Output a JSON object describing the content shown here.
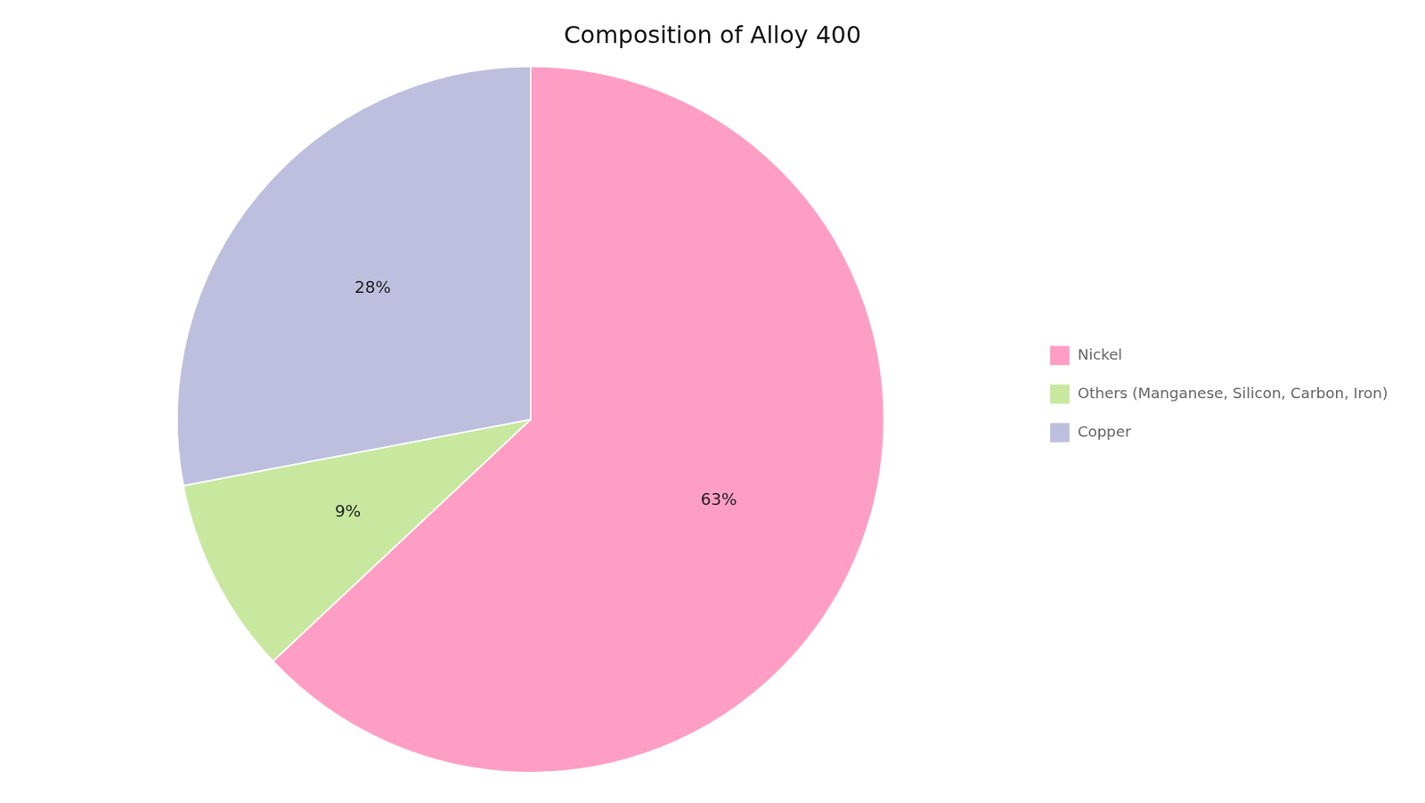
{
  "chart_data": {
    "type": "pie",
    "title": "Composition of Alloy 400",
    "categories": [
      "Nickel",
      "Others (Manganese, Silicon, Carbon, Iron)",
      "Copper"
    ],
    "values": [
      63,
      9,
      28
    ],
    "value_labels": [
      "63%",
      "9%",
      "28%"
    ],
    "colors": [
      "#FF9EC4",
      "#C8E8A0",
      "#BEBEDE"
    ],
    "data_labels": true,
    "legend": "right"
  }
}
